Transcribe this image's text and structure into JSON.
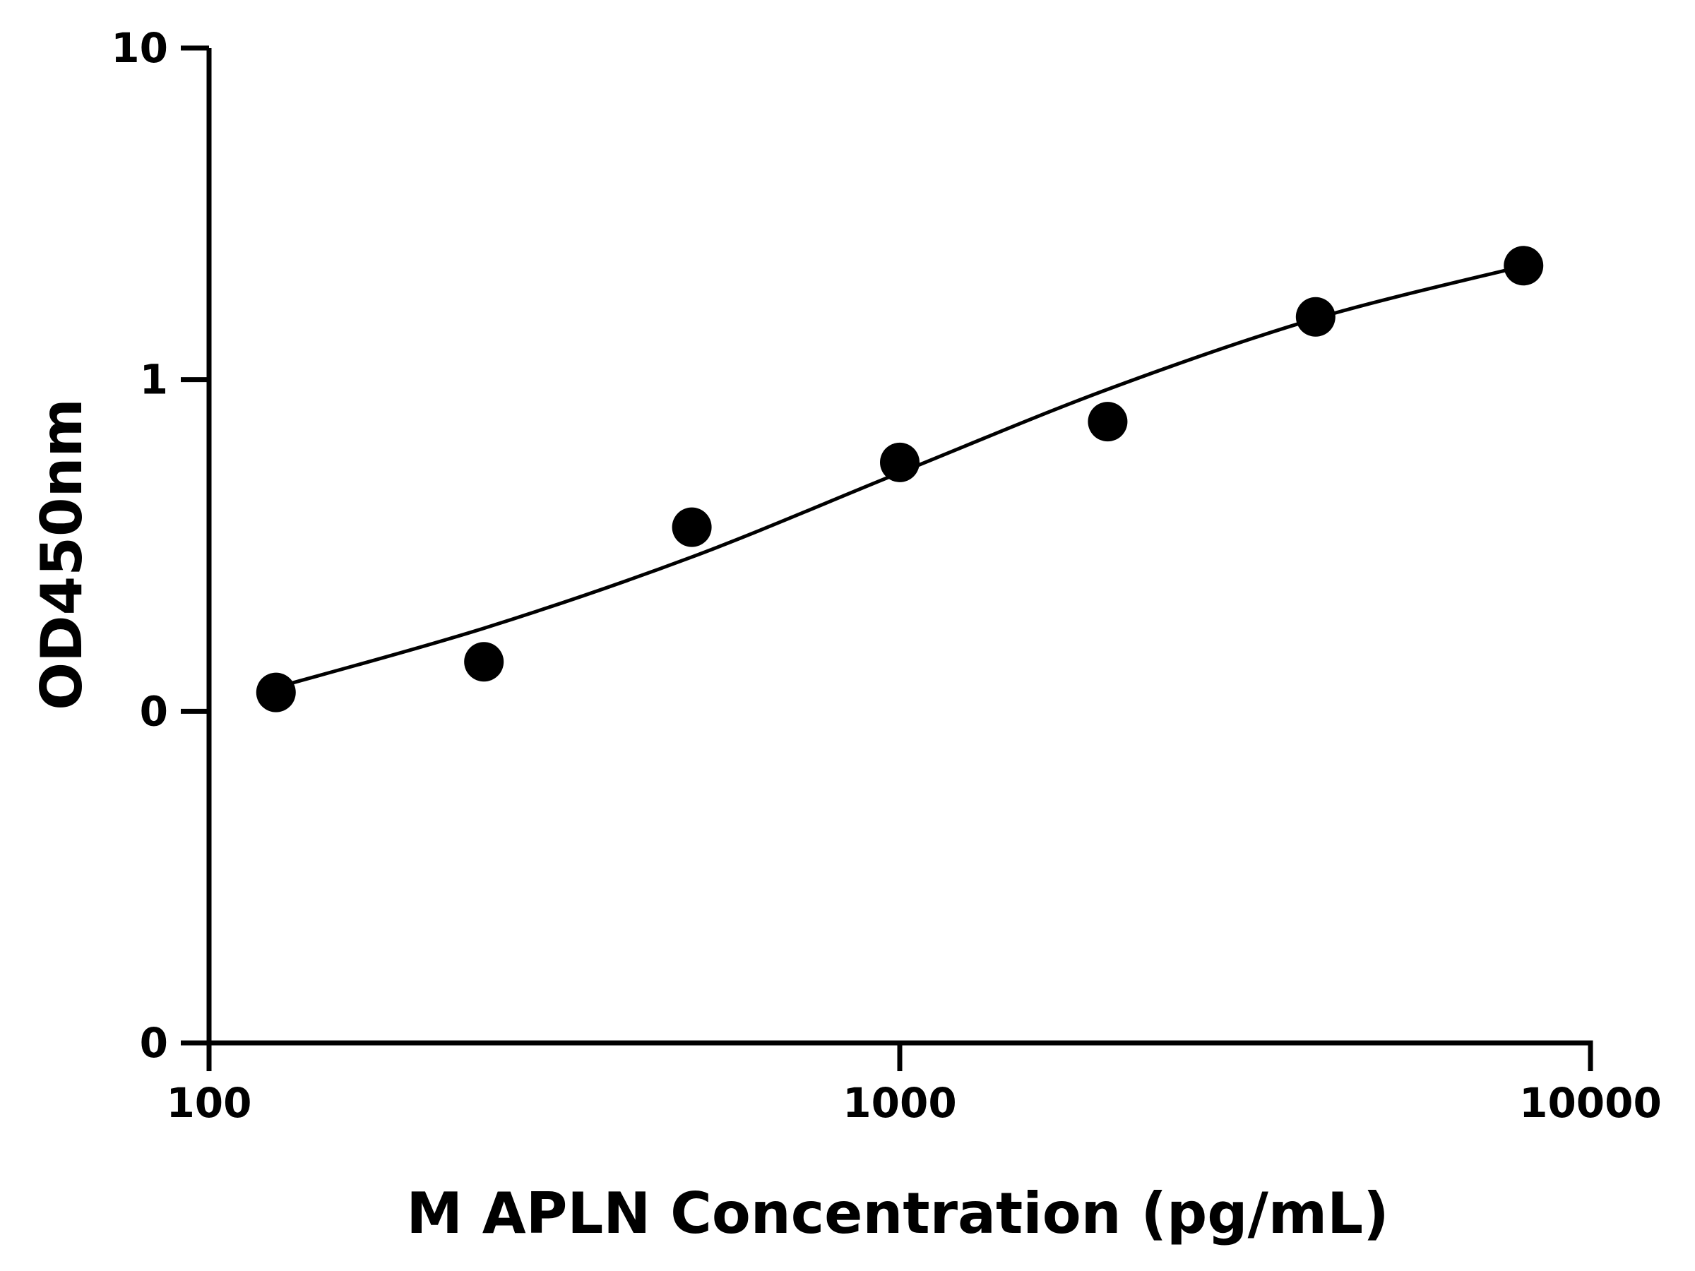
{
  "chart_data": {
    "type": "scatter",
    "title": "",
    "xlabel": "M APLN Concentration (pg/mL)",
    "ylabel": "OD450nm",
    "x_scale": "log",
    "y_scale": "log-like",
    "xlim": [
      100,
      10000
    ],
    "x_ticks": [
      {
        "value": 100,
        "label": "100"
      },
      {
        "value": 1000,
        "label": "1000"
      },
      {
        "value": 10000,
        "label": "10000"
      }
    ],
    "y_ticks": [
      {
        "value": 10,
        "label": "10"
      },
      {
        "value": 1,
        "label": "1"
      },
      {
        "value": 0.1,
        "label": "0"
      },
      {
        "value": 0.01,
        "label": "0"
      }
    ],
    "series": [
      {
        "x": [
          125,
          250,
          500,
          1000,
          2000,
          4000,
          8000
        ],
        "y": [
          0.114,
          0.141,
          0.359,
          0.563,
          0.747,
          1.546,
          2.206
        ]
      }
    ],
    "fit_curve": {
      "x": [
        125,
        250,
        500,
        1000,
        2000,
        4000,
        8000
      ],
      "y": [
        0.118,
        0.178,
        0.292,
        0.524,
        0.935,
        1.528,
        2.202
      ]
    },
    "grid": false,
    "legend": "none",
    "colors": {
      "marker": "#000000",
      "line": "#000000",
      "axis": "#000000"
    }
  }
}
